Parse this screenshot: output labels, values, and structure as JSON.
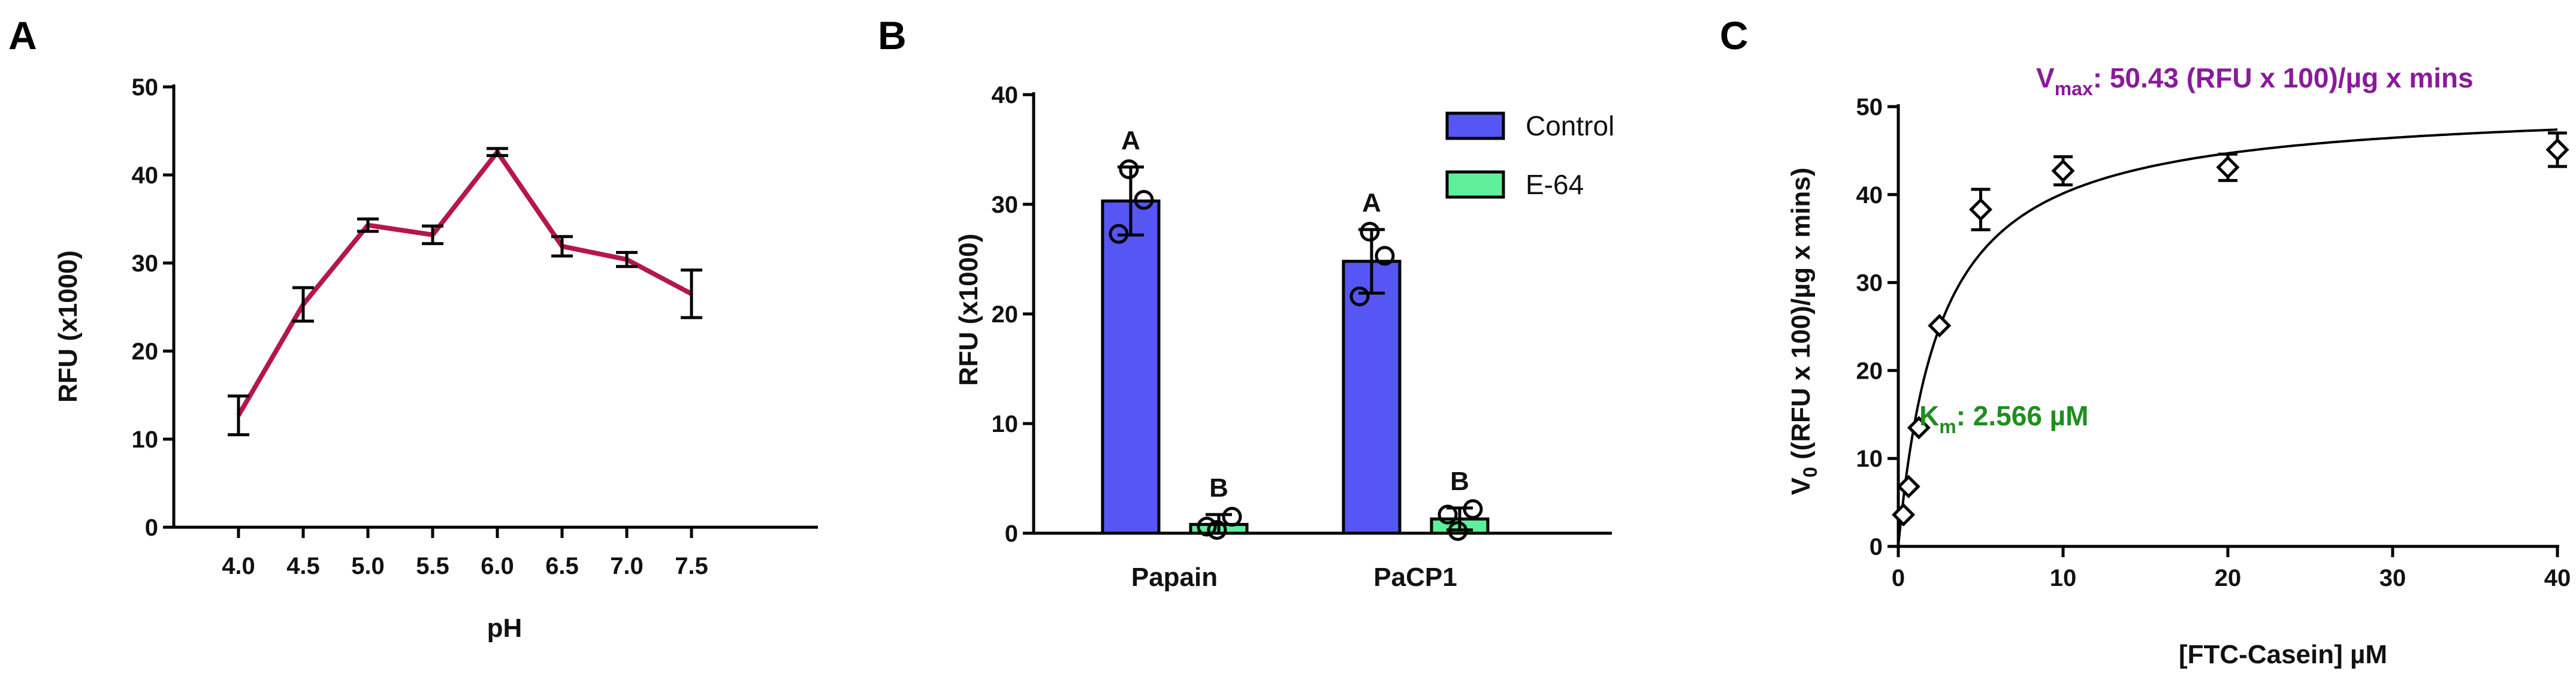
{
  "panels": {
    "a": "A",
    "b": "B",
    "c": "C"
  },
  "chart_data": [
    {
      "id": "A",
      "type": "line",
      "x": [
        4.0,
        4.5,
        5.0,
        5.5,
        6.0,
        6.5,
        7.0,
        7.5
      ],
      "x_tick_labels": [
        "4.0",
        "4.5",
        "5.0",
        "5.5",
        "6.0",
        "6.5",
        "7.0",
        "7.5"
      ],
      "series": [
        {
          "values": [
            12.7,
            25.3,
            34.3,
            33.2,
            42.6,
            31.9,
            30.4,
            26.5
          ],
          "errors": [
            2.2,
            1.9,
            0.7,
            1.0,
            0.4,
            1.1,
            0.8,
            2.7
          ],
          "color": "#b5174a"
        }
      ],
      "xlabel": "pH",
      "ylabel": "RFU (x1000)",
      "ylim": [
        0,
        50
      ],
      "yticks": [
        0,
        10,
        20,
        30,
        40,
        50
      ],
      "grid": false
    },
    {
      "id": "B",
      "type": "bar",
      "categories": [
        "Papain",
        "PaCP1"
      ],
      "series": [
        {
          "name": "Control",
          "values": [
            30.3,
            24.8
          ],
          "errors": [
            3.1,
            2.9
          ],
          "points": [
            [
              33.2,
              27.3,
              30.4
            ],
            [
              27.5,
              21.6,
              25.3
            ]
          ],
          "letters": [
            "A",
            "A"
          ],
          "color": "#5656f5"
        },
        {
          "name": "E-64",
          "values": [
            0.8,
            1.3
          ],
          "errors": [
            0.9,
            1.0
          ],
          "points": [
            [
              0.3,
              0.6,
              1.5
            ],
            [
              0.2,
              1.7,
              2.2
            ]
          ],
          "letters": [
            "B",
            "B"
          ],
          "color": "#5fef9a"
        }
      ],
      "ylabel": "RFU (x1000)",
      "ylim": [
        0,
        40
      ],
      "yticks": [
        0,
        10,
        20,
        30,
        40
      ],
      "legend": "top-right",
      "grid": false
    },
    {
      "id": "C",
      "type": "scatter",
      "x": [
        0.3125,
        0.625,
        1.25,
        2.5,
        5,
        10,
        20,
        40
      ],
      "values": [
        3.6,
        6.8,
        13.5,
        25.1,
        38.3,
        42.7,
        43.1,
        45.1
      ],
      "errors": [
        0.8,
        0.6,
        0.7,
        0.5,
        2.3,
        1.6,
        1.5,
        1.9
      ],
      "fit": {
        "model": "michaelis-menten",
        "vmax": 50.43,
        "km": 2.566
      },
      "annotations": {
        "vmax_sym": "V",
        "vmax_sub": "max",
        "vmax_rest": ": 50.43 (RFU x 100)/µg x mins",
        "km_sym": "K",
        "km_sub": "m",
        "km_rest": ": 2.566 µM"
      },
      "vmax_color": "#8a1a9b",
      "km_color": "#1d8f1d",
      "xlabel": "[FTC-Casein] µM",
      "ylabel_sym": "V",
      "ylabel_sub": "0",
      "ylabel_rest": " ((RFU x 100)/µg x mins)",
      "xlim": [
        0,
        40
      ],
      "xticks": [
        0,
        10,
        20,
        30,
        40
      ],
      "ylim": [
        0,
        50
      ],
      "yticks": [
        0,
        10,
        20,
        30,
        40,
        50
      ],
      "grid": false
    }
  ]
}
